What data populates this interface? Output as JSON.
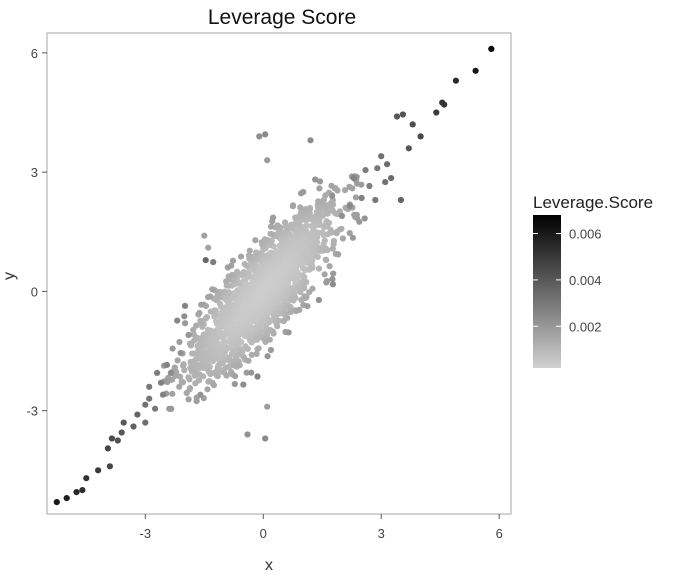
{
  "chart_data": {
    "type": "scatter",
    "title": "Leverage Score",
    "xlabel": "x",
    "ylabel": "y",
    "xlim": [
      -5.5,
      6.3
    ],
    "ylim": [
      -5.6,
      6.5
    ],
    "x_ticks": [
      -3,
      0,
      3,
      6
    ],
    "x_tick_labels": [
      "-3",
      "0",
      "3",
      "6"
    ],
    "y_ticks": [
      -3,
      0,
      3,
      6
    ],
    "y_tick_labels": [
      "-3",
      "0",
      "3",
      "6"
    ],
    "grid": false,
    "legend": {
      "title": "Leverage.Score",
      "placement": "right",
      "type": "colorbar",
      "range": [
        0.0002,
        0.0068
      ],
      "ticks": [
        0.002,
        0.004,
        0.006
      ],
      "tick_labels": [
        "0.002",
        "0.004",
        "0.006"
      ],
      "low_color": "#d0d0d0",
      "high_color": "#000000"
    },
    "colors": {
      "low": "#d0d0d0",
      "high": "#000000",
      "panel_border": "#b3b3b3"
    },
    "points": [
      {
        "x": -5.25,
        "y": -5.3,
        "score": 0.0061
      },
      {
        "x": -5.0,
        "y": -5.2,
        "score": 0.0058
      },
      {
        "x": -4.75,
        "y": -5.05,
        "score": 0.0055
      },
      {
        "x": -4.6,
        "y": -5.0,
        "score": 0.0053
      },
      {
        "x": -4.5,
        "y": -4.7,
        "score": 0.0052
      },
      {
        "x": -4.2,
        "y": -4.5,
        "score": 0.005
      },
      {
        "x": -3.9,
        "y": -4.4,
        "score": 0.0046
      },
      {
        "x": -3.95,
        "y": -3.95,
        "score": 0.0046
      },
      {
        "x": -3.85,
        "y": -3.7,
        "score": 0.0044
      },
      {
        "x": -3.7,
        "y": -3.75,
        "score": 0.0042
      },
      {
        "x": -3.6,
        "y": -3.55,
        "score": 0.004
      },
      {
        "x": -3.55,
        "y": -3.3,
        "score": 0.004
      },
      {
        "x": -3.3,
        "y": -3.4,
        "score": 0.0037
      },
      {
        "x": -3.2,
        "y": -3.1,
        "score": 0.0036
      },
      {
        "x": -3.0,
        "y": -3.3,
        "score": 0.0033
      },
      {
        "x": -3.0,
        "y": -2.85,
        "score": 0.0032
      },
      {
        "x": -2.75,
        "y": -2.95,
        "score": 0.003
      },
      {
        "x": -2.9,
        "y": -2.4,
        "score": 0.003
      },
      {
        "x": -2.6,
        "y": -2.3,
        "score": 0.0027
      },
      {
        "x": -2.35,
        "y": -2.05,
        "score": 0.0024
      },
      {
        "x": -2.1,
        "y": -1.55,
        "score": 0.0022
      },
      {
        "x": -1.9,
        "y": -1.1,
        "score": 0.002
      },
      {
        "x": -2.45,
        "y": -1.85,
        "score": 0.0026
      },
      {
        "x": -2.55,
        "y": -2.6,
        "score": 0.0027
      },
      {
        "x": -2.7,
        "y": -2.05,
        "score": 0.0028
      },
      {
        "x": -2.9,
        "y": -2.7,
        "score": 0.0031
      },
      {
        "x": -1.6,
        "y": -2.6,
        "score": 0.0021
      },
      {
        "x": -0.4,
        "y": -3.6,
        "score": 0.0022
      },
      {
        "x": 0.05,
        "y": -3.7,
        "score": 0.0024
      },
      {
        "x": 0.1,
        "y": -2.9,
        "score": 0.0018
      },
      {
        "x": 0.05,
        "y": 3.95,
        "score": 0.0024
      },
      {
        "x": -0.1,
        "y": 3.9,
        "score": 0.0023
      },
      {
        "x": 0.1,
        "y": 3.3,
        "score": 0.0019
      },
      {
        "x": 1.2,
        "y": 3.8,
        "score": 0.0024
      },
      {
        "x": -1.5,
        "y": 1.4,
        "score": 0.0017
      },
      {
        "x": -1.4,
        "y": 1.1,
        "score": 0.0016
      },
      {
        "x": 1.75,
        "y": 2.4,
        "score": 0.0022
      },
      {
        "x": 2.3,
        "y": 2.85,
        "score": 0.0026
      },
      {
        "x": 2.6,
        "y": 3.05,
        "score": 0.0029
      },
      {
        "x": 2.7,
        "y": 2.65,
        "score": 0.0028
      },
      {
        "x": 2.9,
        "y": 3.1,
        "score": 0.003
      },
      {
        "x": 3.0,
        "y": 3.4,
        "score": 0.0032
      },
      {
        "x": 3.1,
        "y": 2.75,
        "score": 0.0032
      },
      {
        "x": 3.15,
        "y": 3.2,
        "score": 0.0033
      },
      {
        "x": 3.25,
        "y": 2.85,
        "score": 0.0034
      },
      {
        "x": 2.85,
        "y": 2.3,
        "score": 0.003
      },
      {
        "x": 2.5,
        "y": 2.35,
        "score": 0.0027
      },
      {
        "x": 2.2,
        "y": 2.15,
        "score": 0.0025
      },
      {
        "x": 2.0,
        "y": 1.9,
        "score": 0.0023
      },
      {
        "x": 3.5,
        "y": 2.3,
        "score": 0.0036
      },
      {
        "x": 3.4,
        "y": 4.4,
        "score": 0.004
      },
      {
        "x": 3.55,
        "y": 4.45,
        "score": 0.0041
      },
      {
        "x": 3.8,
        "y": 4.2,
        "score": 0.0043
      },
      {
        "x": 3.7,
        "y": 3.6,
        "score": 0.0041
      },
      {
        "x": 4.0,
        "y": 3.9,
        "score": 0.0045
      },
      {
        "x": 4.4,
        "y": 4.5,
        "score": 0.0049
      },
      {
        "x": 4.55,
        "y": 4.75,
        "score": 0.0051
      },
      {
        "x": 4.6,
        "y": 4.7,
        "score": 0.0051
      },
      {
        "x": 4.9,
        "y": 5.3,
        "score": 0.0055
      },
      {
        "x": 5.4,
        "y": 5.55,
        "score": 0.006
      },
      {
        "x": 5.8,
        "y": 6.1,
        "score": 0.0066
      }
    ]
  }
}
